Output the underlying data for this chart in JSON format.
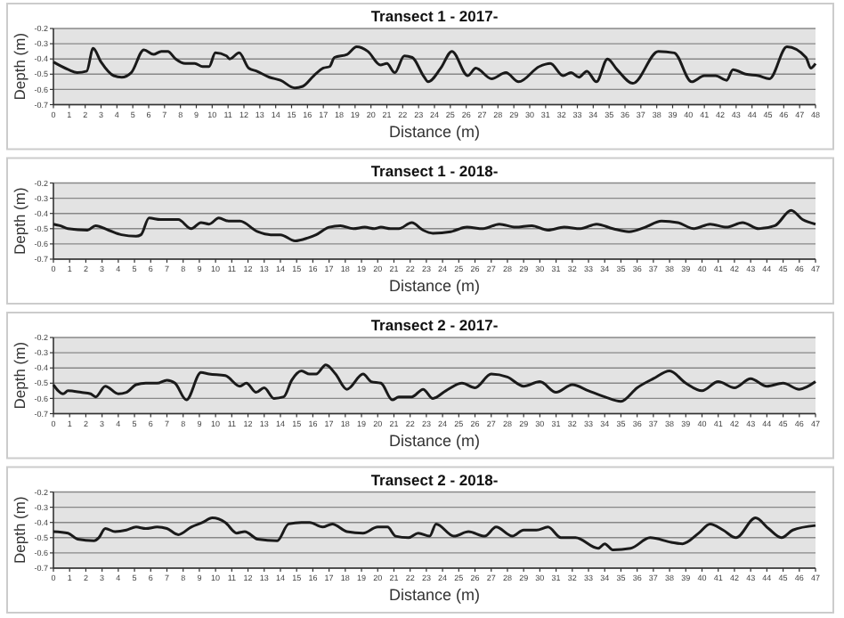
{
  "chart_data": [
    {
      "type": "line",
      "title": "Transect 1 - 2017-",
      "xlabel": "Distance (m)",
      "ylabel": "Depth (m)",
      "xlim": [
        0,
        48
      ],
      "xticks": [
        0,
        1,
        2,
        3,
        4,
        5,
        6,
        7,
        8,
        9,
        10,
        11,
        12,
        13,
        14,
        15,
        16,
        17,
        18,
        19,
        20,
        21,
        22,
        23,
        24,
        25,
        26,
        27,
        28,
        29,
        30,
        31,
        32,
        33,
        34,
        35,
        36,
        37,
        38,
        39,
        40,
        41,
        42,
        43,
        44,
        45,
        46,
        47,
        48
      ],
      "ylim": [
        -0.7,
        -0.2
      ],
      "yticks": [
        -0.7,
        -0.6,
        -0.5,
        -0.4,
        -0.3,
        -0.2
      ],
      "grid": "y",
      "series": [
        {
          "color": "#1a1a1a",
          "x": [
            0,
            0.94,
            1.5,
            2.1,
            2.5,
            3.0,
            3.8,
            4.3,
            4.9,
            5.7,
            6.3,
            6.8,
            7.2,
            7.7,
            8.3,
            8.9,
            9.4,
            9.8,
            10.2,
            10.9,
            11.1,
            11.7,
            12.3,
            12.8,
            13.6,
            14.3,
            15.2,
            15.7,
            16.4,
            17.0,
            17.4,
            17.7,
            18.5,
            19.1,
            19.8,
            20.6,
            21.0,
            21.5,
            22.1,
            22.6,
            23.3,
            23.6,
            24.4,
            25.1,
            26.1,
            26.6,
            27.6,
            28.5,
            29.3,
            30.6,
            31.3,
            32.1,
            32.6,
            33.1,
            33.6,
            34.2,
            34.9,
            35.5,
            36.5,
            38.1,
            39.1,
            40.2,
            41.0,
            41.7,
            42.4,
            42.8,
            43.6,
            44.4,
            45.1,
            46.2,
            47.4,
            47.7,
            48
          ],
          "values": [
            -0.42,
            -0.47,
            -0.49,
            -0.48,
            -0.33,
            -0.42,
            -0.51,
            -0.52,
            -0.49,
            -0.34,
            -0.37,
            -0.35,
            -0.35,
            -0.4,
            -0.43,
            -0.43,
            -0.45,
            -0.45,
            -0.36,
            -0.38,
            -0.4,
            -0.36,
            -0.46,
            -0.48,
            -0.52,
            -0.54,
            -0.59,
            -0.58,
            -0.51,
            -0.46,
            -0.45,
            -0.39,
            -0.37,
            -0.32,
            -0.35,
            -0.44,
            -0.43,
            -0.49,
            -0.38,
            -0.39,
            -0.51,
            -0.55,
            -0.46,
            -0.35,
            -0.51,
            -0.46,
            -0.53,
            -0.49,
            -0.55,
            -0.45,
            -0.43,
            -0.51,
            -0.49,
            -0.52,
            -0.48,
            -0.55,
            -0.4,
            -0.47,
            -0.56,
            -0.35,
            -0.36,
            -0.55,
            -0.51,
            -0.51,
            -0.54,
            -0.47,
            -0.5,
            -0.51,
            -0.53,
            -0.32,
            -0.39,
            -0.46,
            -0.43
          ]
        }
      ]
    },
    {
      "type": "line",
      "title": "Transect 1 - 2018-",
      "xlabel": "Distance (m)",
      "ylabel": "Depth (m)",
      "xlim": [
        0,
        47
      ],
      "xticks": [
        0,
        1,
        2,
        3,
        4,
        5,
        6,
        7,
        8,
        9,
        10,
        11,
        12,
        13,
        14,
        15,
        16,
        17,
        18,
        19,
        20,
        21,
        22,
        23,
        24,
        25,
        26,
        27,
        28,
        29,
        30,
        31,
        32,
        33,
        34,
        35,
        36,
        37,
        38,
        39,
        40,
        41,
        42,
        43,
        44,
        45,
        46,
        47
      ],
      "ylim": [
        -0.7,
        -0.2
      ],
      "yticks": [
        -0.7,
        -0.6,
        -0.5,
        -0.4,
        -0.3,
        -0.2
      ],
      "grid": "y",
      "series": [
        {
          "color": "#1a1a1a",
          "x": [
            0,
            0.4,
            0.9,
            2.1,
            2.6,
            3.4,
            4.2,
            5.1,
            5.4,
            5.9,
            6.6,
            7.7,
            8.5,
            9.1,
            9.6,
            10.2,
            10.8,
            11.5,
            12.6,
            13.4,
            14.0,
            14.9,
            15.7,
            16.2,
            17.0,
            17.7,
            18.5,
            19.2,
            19.8,
            20.2,
            20.8,
            21.3,
            22.1,
            22.8,
            23.4,
            24.5,
            25.5,
            26.5,
            27.5,
            28.5,
            29.5,
            30.5,
            31.5,
            32.5,
            33.5,
            34.5,
            35.5,
            36.5,
            37.5,
            38.5,
            39.5,
            40.5,
            41.5,
            42.5,
            43.5,
            44.5,
            45.5,
            46.2,
            47
          ],
          "values": [
            -0.47,
            -0.48,
            -0.5,
            -0.51,
            -0.48,
            -0.51,
            -0.54,
            -0.55,
            -0.54,
            -0.43,
            -0.44,
            -0.44,
            -0.5,
            -0.46,
            -0.47,
            -0.43,
            -0.45,
            -0.45,
            -0.52,
            -0.54,
            -0.54,
            -0.58,
            -0.56,
            -0.54,
            -0.49,
            -0.48,
            -0.5,
            -0.49,
            -0.5,
            -0.49,
            -0.5,
            -0.5,
            -0.46,
            -0.51,
            -0.53,
            -0.52,
            -0.49,
            -0.5,
            -0.47,
            -0.49,
            -0.48,
            -0.51,
            -0.49,
            -0.5,
            -0.47,
            -0.5,
            -0.52,
            -0.49,
            -0.45,
            -0.46,
            -0.5,
            -0.47,
            -0.49,
            -0.46,
            -0.5,
            -0.48,
            -0.38,
            -0.44,
            -0.47
          ]
        }
      ]
    },
    {
      "type": "line",
      "title": "Transect 2 - 2017-",
      "xlabel": "Distance (m)",
      "ylabel": "Depth (m)",
      "xlim": [
        0,
        47
      ],
      "xticks": [
        0,
        1,
        2,
        3,
        4,
        5,
        6,
        7,
        8,
        9,
        10,
        11,
        12,
        13,
        14,
        15,
        16,
        17,
        18,
        19,
        20,
        21,
        22,
        23,
        24,
        25,
        26,
        27,
        28,
        29,
        30,
        31,
        32,
        33,
        34,
        35,
        36,
        37,
        38,
        39,
        40,
        41,
        42,
        43,
        44,
        45,
        46,
        47
      ],
      "ylim": [
        -0.7,
        -0.2
      ],
      "yticks": [
        -0.7,
        -0.6,
        -0.5,
        -0.4,
        -0.3,
        -0.2
      ],
      "grid": "y",
      "series": [
        {
          "color": "#1a1a1a",
          "x": [
            0,
            0.6,
            0.9,
            1.7,
            2.3,
            2.6,
            3.2,
            4.0,
            4.5,
            5.1,
            5.7,
            6.4,
            7.0,
            7.5,
            8.2,
            9.1,
            9.6,
            10.6,
            11.5,
            11.9,
            12.5,
            13.0,
            13.6,
            14.2,
            14.7,
            15.3,
            15.8,
            16.2,
            16.8,
            17.4,
            18.1,
            19.1,
            19.6,
            20.2,
            20.9,
            21.3,
            22.1,
            22.8,
            23.4,
            24.2,
            25.2,
            26,
            27,
            28,
            29,
            30,
            31,
            32,
            33,
            34,
            35,
            36,
            37,
            38,
            39,
            40,
            41,
            42,
            43,
            44,
            45,
            46,
            47
          ],
          "values": [
            -0.51,
            -0.57,
            -0.55,
            -0.56,
            -0.57,
            -0.59,
            -0.52,
            -0.57,
            -0.56,
            -0.51,
            -0.5,
            -0.5,
            -0.48,
            -0.5,
            -0.61,
            -0.43,
            -0.44,
            -0.45,
            -0.52,
            -0.5,
            -0.56,
            -0.53,
            -0.6,
            -0.59,
            -0.48,
            -0.42,
            -0.44,
            -0.44,
            -0.38,
            -0.44,
            -0.54,
            -0.44,
            -0.49,
            -0.5,
            -0.61,
            -0.59,
            -0.59,
            -0.54,
            -0.6,
            -0.55,
            -0.5,
            -0.53,
            -0.44,
            -0.46,
            -0.52,
            -0.49,
            -0.56,
            -0.51,
            -0.55,
            -0.59,
            -0.62,
            -0.53,
            -0.47,
            -0.42,
            -0.5,
            -0.55,
            -0.49,
            -0.53,
            -0.47,
            -0.52,
            -0.5,
            -0.54,
            -0.49
          ]
        }
      ]
    },
    {
      "type": "line",
      "title": "Transect 2 - 2018-",
      "xlabel": "Distance (m)",
      "ylabel": "Depth (m)",
      "xlim": [
        0,
        47
      ],
      "xticks": [
        0,
        1,
        2,
        3,
        4,
        5,
        6,
        7,
        8,
        9,
        10,
        11,
        12,
        13,
        14,
        15,
        16,
        17,
        18,
        19,
        20,
        21,
        22,
        23,
        24,
        25,
        26,
        27,
        28,
        29,
        30,
        31,
        32,
        33,
        34,
        35,
        36,
        37,
        38,
        39,
        40,
        41,
        42,
        43,
        44,
        45,
        46,
        47
      ],
      "ylim": [
        -0.7,
        -0.2
      ],
      "yticks": [
        -0.7,
        -0.6,
        -0.5,
        -0.4,
        -0.3,
        -0.2
      ],
      "grid": "y",
      "series": [
        {
          "color": "#1a1a1a",
          "x": [
            0,
            0.9,
            1.5,
            2.5,
            2.8,
            3.2,
            3.8,
            4.5,
            5.1,
            5.7,
            6.4,
            7.0,
            7.7,
            8.5,
            9.2,
            9.8,
            10.6,
            11.3,
            11.8,
            12.6,
            13.8,
            14.5,
            15.3,
            15.8,
            16.6,
            17.2,
            18.1,
            19.1,
            20.0,
            20.6,
            21.1,
            21.9,
            22.5,
            23.2,
            23.6,
            24.7,
            25.6,
            26.6,
            27.3,
            28.3,
            29.0,
            29.8,
            30.5,
            31.3,
            32.2,
            33.6,
            34.0,
            34.5,
            35.6,
            36.8,
            38.1,
            38.8,
            39.8,
            40.5,
            41.3,
            42.1,
            43.3,
            44.1,
            44.9,
            45.6,
            47
          ],
          "values": [
            -0.46,
            -0.47,
            -0.51,
            -0.52,
            -0.5,
            -0.44,
            -0.46,
            -0.45,
            -0.43,
            -0.44,
            -0.43,
            -0.44,
            -0.48,
            -0.43,
            -0.4,
            -0.37,
            -0.4,
            -0.47,
            -0.46,
            -0.51,
            -0.52,
            -0.41,
            -0.4,
            -0.4,
            -0.43,
            -0.41,
            -0.46,
            -0.47,
            -0.43,
            -0.43,
            -0.49,
            -0.5,
            -0.47,
            -0.49,
            -0.41,
            -0.49,
            -0.46,
            -0.49,
            -0.43,
            -0.49,
            -0.45,
            -0.45,
            -0.43,
            -0.5,
            -0.5,
            -0.57,
            -0.54,
            -0.58,
            -0.57,
            -0.5,
            -0.53,
            -0.54,
            -0.47,
            -0.41,
            -0.45,
            -0.5,
            -0.37,
            -0.44,
            -0.5,
            -0.45,
            -0.42
          ]
        }
      ]
    }
  ]
}
